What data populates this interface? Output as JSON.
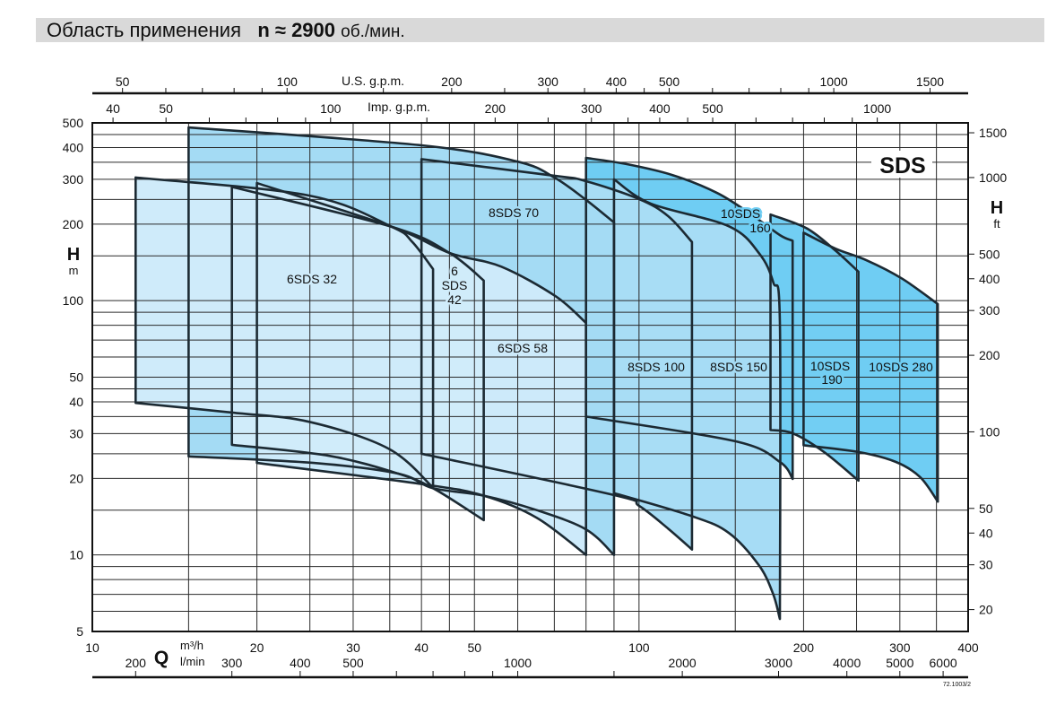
{
  "header": {
    "title": "Область применения",
    "speed": "n ≈ 2900",
    "speed_unit": "об./мин."
  },
  "chart_data": {
    "type": "area",
    "title": "Область применения n ≈ 2900 об./мин.",
    "series_tag": "SDS",
    "doc_code": "72.1003/2",
    "grid": true,
    "x_axis": {
      "symbol": "Q",
      "unit": "m³/h",
      "scale": "log",
      "range": [
        10,
        400
      ],
      "tick_labels": [
        10,
        20,
        30,
        40,
        50,
        100,
        200,
        300,
        400
      ],
      "gridlines": [
        10,
        15,
        20,
        25,
        30,
        35,
        40,
        45,
        50,
        60,
        70,
        80,
        90,
        100,
        150,
        200,
        250,
        300,
        350,
        400
      ]
    },
    "x_axis_lmin": {
      "unit": "l/min",
      "tick_labels": [
        200,
        300,
        400,
        500,
        1000,
        2000,
        3000,
        4000,
        5000,
        6000
      ],
      "ticks": [
        200,
        300,
        400,
        500,
        600,
        700,
        800,
        900,
        1000,
        1500,
        2000,
        3000,
        4000,
        5000,
        6000
      ]
    },
    "x_axis_usgpm": {
      "label": "U.S. g.p.m.",
      "tick_labels": [
        50,
        100,
        200,
        300,
        400,
        500,
        1000,
        1500
      ],
      "ticks": [
        50,
        60,
        70,
        80,
        90,
        100,
        150,
        200,
        250,
        300,
        350,
        400,
        450,
        500,
        600,
        700,
        800,
        900,
        1000,
        1500
      ]
    },
    "x_axis_impgpm": {
      "label": "Imp. g.p.m.",
      "tick_labels": [
        40,
        50,
        100,
        200,
        300,
        400,
        500,
        1000
      ],
      "ticks": [
        40,
        50,
        60,
        70,
        80,
        90,
        100,
        150,
        200,
        250,
        300,
        350,
        400,
        450,
        500,
        600,
        700,
        800,
        900,
        1000,
        1500
      ]
    },
    "y_axis": {
      "symbol": "H",
      "unit": "m",
      "scale": "log",
      "range": [
        5,
        500
      ],
      "tick_labels": [
        5,
        10,
        20,
        30,
        40,
        50,
        100,
        200,
        300,
        400,
        500
      ],
      "gridlines": [
        5,
        6,
        7,
        8,
        9,
        10,
        15,
        20,
        25,
        30,
        35,
        40,
        45,
        50,
        60,
        70,
        80,
        90,
        100,
        150,
        200,
        250,
        300,
        350,
        400,
        450,
        500
      ]
    },
    "y_axis_ft": {
      "symbol": "H",
      "unit": "ft",
      "tick_labels": [
        20,
        30,
        40,
        50,
        100,
        200,
        300,
        400,
        500,
        1000,
        1500
      ]
    },
    "series": [
      {
        "name": "10SDS 280",
        "color": "#6fcdf3",
        "upper": [
          [
            200,
            185
          ],
          [
            229,
            160
          ],
          [
            261,
            144
          ],
          [
            303,
            122
          ],
          [
            352,
            97
          ]
        ],
        "lower": [
          [
            352,
            16.2
          ],
          [
            327,
            20.2
          ],
          [
            295,
            23.2
          ],
          [
            252,
            25.4
          ],
          [
            200,
            27
          ]
        ]
      },
      {
        "name": "10SDS 190",
        "color": "#72cef3",
        "upper": [
          [
            174,
            218
          ],
          [
            203,
            192
          ],
          [
            229,
            157
          ],
          [
            252,
            130
          ]
        ],
        "lower": [
          [
            252,
            19.6
          ],
          [
            218,
            25.4
          ],
          [
            191,
            30.1
          ],
          [
            174,
            31
          ]
        ]
      },
      {
        "name": "10SDS 160",
        "color": "#6fcdf3",
        "upper": [
          [
            80,
            364
          ],
          [
            95,
            344
          ],
          [
            115,
            312
          ],
          [
            139,
            265
          ],
          [
            161,
            217
          ],
          [
            181,
            181
          ],
          [
            191,
            172
          ]
        ],
        "lower": [
          [
            191,
            19.9
          ],
          [
            181,
            23.2
          ],
          [
            150,
            28
          ],
          [
            80,
            35
          ]
        ]
      },
      {
        "name": "8SDS 150",
        "color": "#a6dcf5",
        "upper": [
          [
            90,
            300
          ],
          [
            105,
            241
          ],
          [
            146,
            196
          ],
          [
            166,
            153
          ],
          [
            176,
            118
          ],
          [
            181,
            82
          ],
          [
            181,
            5.6
          ]
        ],
        "lower": [
          [
            181,
            5.6
          ],
          [
            176,
            7.0
          ],
          [
            166,
            9.05
          ],
          [
            146,
            12.2
          ],
          [
            125,
            14.2
          ],
          [
            90,
            17.5
          ]
        ]
      },
      {
        "name": "8SDS 100",
        "color": "#a8ddf5",
        "upper": [
          [
            40,
            360
          ],
          [
            70,
            310
          ],
          [
            80,
            295
          ],
          [
            100,
            251
          ],
          [
            113,
            215
          ],
          [
            125,
            170
          ]
        ],
        "lower": [
          [
            125,
            10.5
          ],
          [
            113,
            12.7
          ],
          [
            100,
            15.6
          ],
          [
            90,
            17.2
          ],
          [
            40,
            25
          ]
        ]
      },
      {
        "name": "8SDS 70",
        "color": "#a4dbf4",
        "upper": [
          [
            15,
            480
          ],
          [
            40,
            408
          ],
          [
            60,
            352
          ],
          [
            70,
            305
          ],
          [
            80,
            249
          ],
          [
            90,
            203
          ]
        ],
        "lower": [
          [
            90,
            10
          ],
          [
            80,
            12.6
          ],
          [
            65,
            15
          ],
          [
            52,
            17.1
          ],
          [
            42,
            18.3
          ],
          [
            36.2,
            20.9
          ],
          [
            25.4,
            23
          ],
          [
            15,
            24.4
          ]
        ]
      },
      {
        "name": "6SDS 58",
        "color": "#cdeafa",
        "upper": [
          [
            20,
            290
          ],
          [
            35.3,
            195
          ],
          [
            45,
            154
          ],
          [
            56,
            136
          ],
          [
            70.4,
            104
          ],
          [
            80,
            81.7
          ]
        ],
        "lower": [
          [
            80,
            10
          ],
          [
            65,
            14
          ],
          [
            52,
            17.1
          ],
          [
            40,
            19
          ],
          [
            20,
            23
          ]
        ]
      },
      {
        "name": "6SDS 42",
        "color": "#d0ecfa",
        "upper": [
          [
            18,
            280
          ],
          [
            35.3,
            195
          ],
          [
            45,
            154
          ],
          [
            52,
            120
          ]
        ],
        "lower": [
          [
            52,
            13.7
          ],
          [
            42,
            18.3
          ],
          [
            36.2,
            20.9
          ],
          [
            27.2,
            24.5
          ],
          [
            18,
            27.1
          ]
        ]
      },
      {
        "name": "6SDS 32",
        "color": "#cfebfa",
        "upper": [
          [
            12,
            305
          ],
          [
            24.9,
            259
          ],
          [
            35.3,
            195
          ],
          [
            38.5,
            170
          ],
          [
            42,
            133
          ]
        ],
        "lower": [
          [
            42,
            18.4
          ],
          [
            34.8,
            26.2
          ],
          [
            24.9,
            33.4
          ],
          [
            18,
            36.3
          ],
          [
            12,
            39.6
          ]
        ]
      }
    ]
  }
}
